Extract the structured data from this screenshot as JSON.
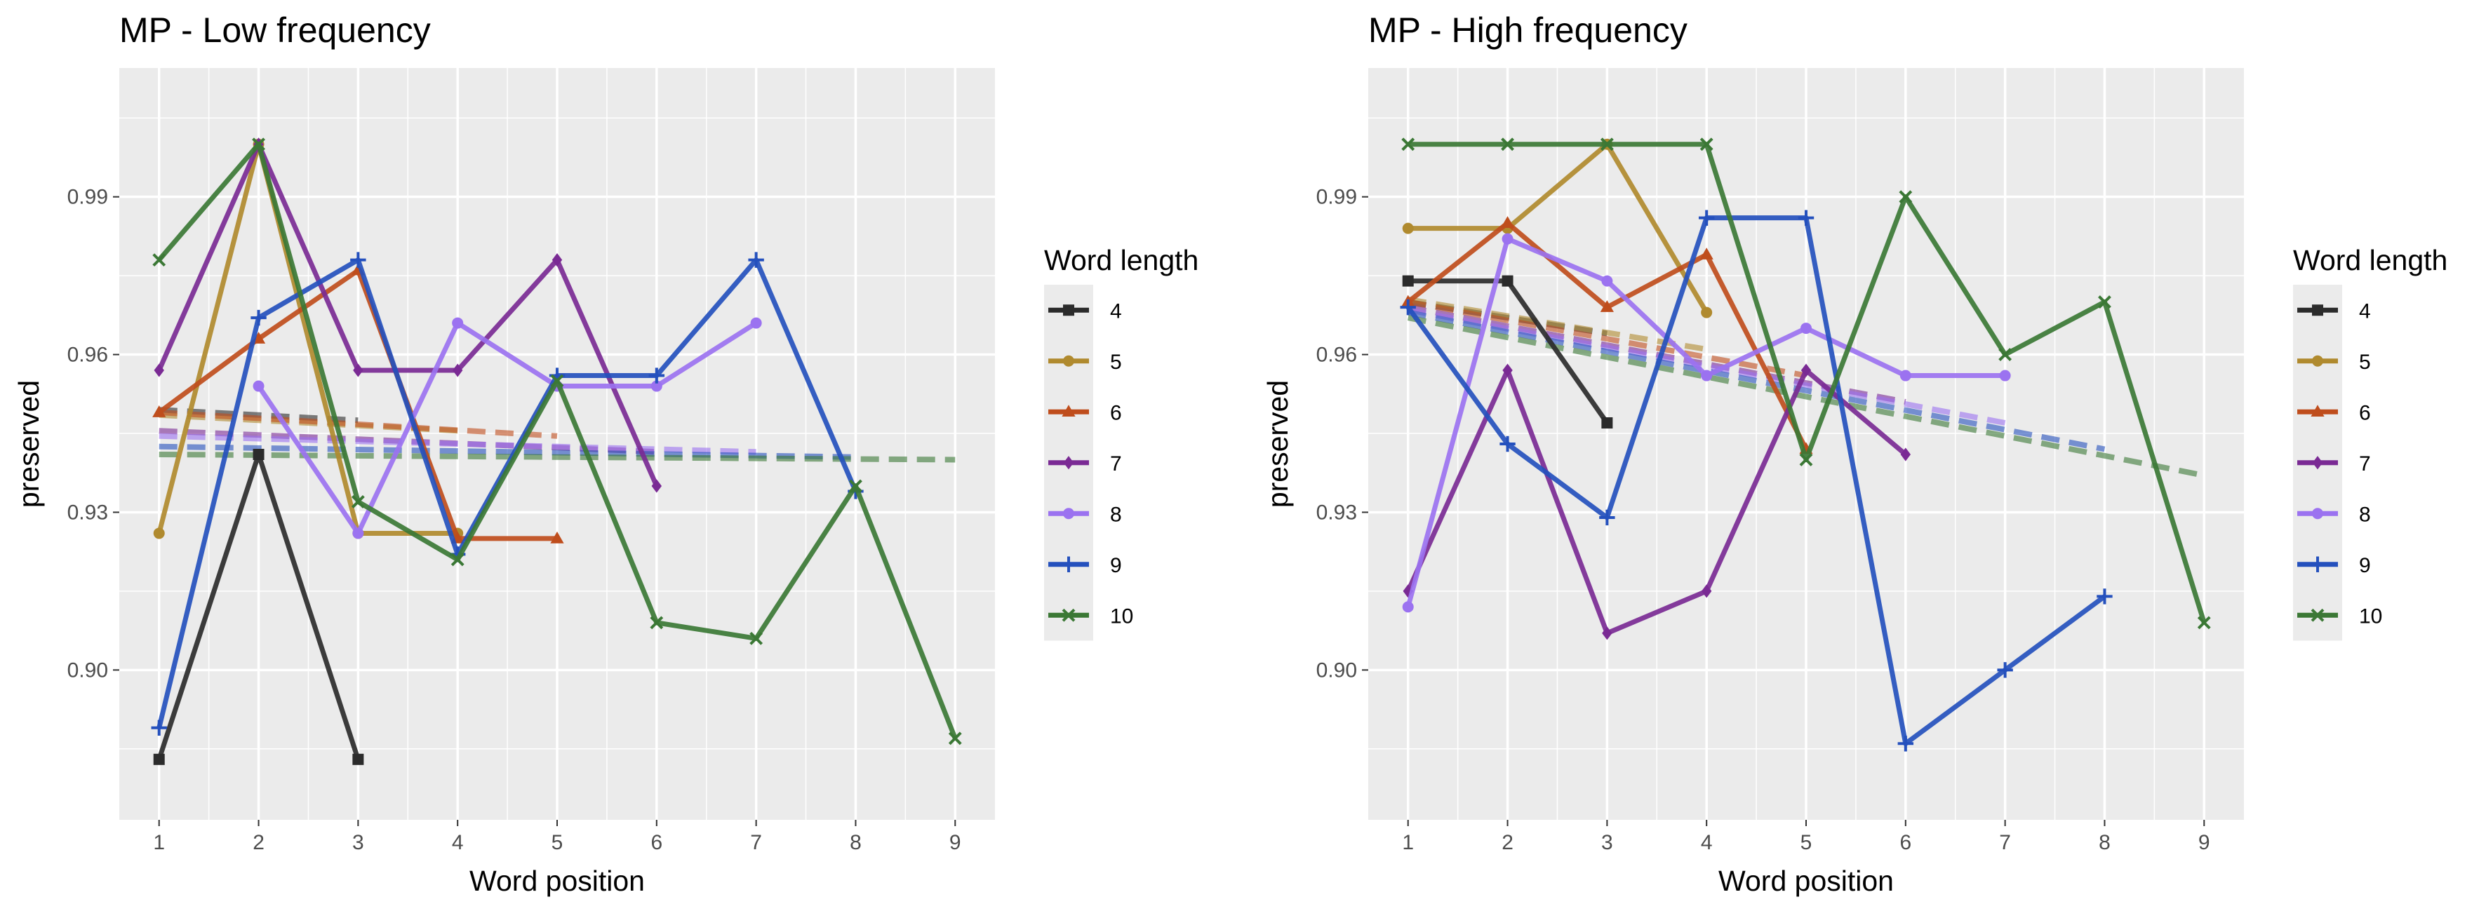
{
  "colors": {
    "4": "#2b2b2b",
    "5": "#b08a2e",
    "6": "#bf4d1c",
    "7": "#7a2a94",
    "8": "#9b72f0",
    "9": "#2450bd",
    "10": "#3b7835"
  },
  "chart_data": [
    {
      "type": "line",
      "title": "MP - Low frequency",
      "xlabel": "Word position",
      "ylabel": "preserved",
      "legend_title": "Word length",
      "legend_position": "right",
      "x_ticks": [
        "1",
        "2",
        "3",
        "4",
        "5",
        "6",
        "7",
        "8",
        "9"
      ],
      "y_ticks": [
        "0.90",
        "0.93",
        "0.96",
        "0.99"
      ],
      "xlim": [
        0.6,
        9.4
      ],
      "ylim": [
        0.8715,
        1.0145
      ],
      "series": [
        {
          "name": "4",
          "marker": "square",
          "x": [
            1,
            2,
            3
          ],
          "y": [
            0.883,
            0.941,
            0.883
          ],
          "trend": [
            [
              1,
              0.9495
            ],
            [
              3,
              0.9475
            ]
          ]
        },
        {
          "name": "5",
          "marker": "circle",
          "x": [
            1,
            2,
            3,
            4
          ],
          "y": [
            0.926,
            1.0,
            0.926,
            0.926
          ],
          "trend": [
            [
              1,
              0.9485
            ],
            [
              4,
              0.9455
            ]
          ]
        },
        {
          "name": "6",
          "marker": "triangle",
          "x": [
            1,
            2,
            3,
            4,
            5
          ],
          "y": [
            0.949,
            0.963,
            0.976,
            0.925,
            0.925
          ],
          "trend": [
            [
              1,
              0.949
            ],
            [
              5,
              0.9445
            ]
          ]
        },
        {
          "name": "7",
          "marker": "diamond",
          "x": [
            1,
            2,
            3,
            4,
            5,
            6
          ],
          "y": [
            0.957,
            1.0,
            0.957,
            0.957,
            0.978,
            0.935
          ],
          "trend": [
            [
              1,
              0.9455
            ],
            [
              6,
              0.9415
            ]
          ]
        },
        {
          "name": "8",
          "marker": "circle",
          "x": [
            2,
            3,
            4,
            5,
            6,
            7
          ],
          "y": [
            0.954,
            0.926,
            0.966,
            0.954,
            0.954,
            0.966
          ],
          "trend": [
            [
              1,
              0.9445
            ],
            [
              7,
              0.9415
            ]
          ]
        },
        {
          "name": "9",
          "marker": "plus",
          "x": [
            1,
            2,
            3,
            4,
            5,
            6,
            7,
            8
          ],
          "y": [
            0.889,
            0.967,
            0.978,
            0.922,
            0.956,
            0.956,
            0.978,
            0.934
          ],
          "trend": [
            [
              1,
              0.9425
            ],
            [
              8,
              0.9405
            ]
          ]
        },
        {
          "name": "10",
          "marker": "cross",
          "x": [
            1,
            2,
            3,
            4,
            5,
            6,
            7,
            8,
            9
          ],
          "y": [
            0.978,
            1.0,
            0.932,
            0.921,
            0.955,
            0.909,
            0.906,
            0.935,
            0.887
          ],
          "trend": [
            [
              1,
              0.941
            ],
            [
              9,
              0.94
            ]
          ]
        }
      ]
    },
    {
      "type": "line",
      "title": "MP - High frequency",
      "xlabel": "Word position",
      "ylabel": "preserved",
      "legend_title": "Word length",
      "legend_position": "right",
      "x_ticks": [
        "1",
        "2",
        "3",
        "4",
        "5",
        "6",
        "7",
        "8",
        "9"
      ],
      "y_ticks": [
        "0.90",
        "0.93",
        "0.96",
        "0.99"
      ],
      "xlim": [
        0.6,
        9.4
      ],
      "ylim": [
        0.8715,
        1.0145
      ],
      "series": [
        {
          "name": "4",
          "marker": "square",
          "x": [
            1,
            2,
            3
          ],
          "y": [
            0.974,
            0.974,
            0.947
          ],
          "trend": [
            [
              1,
              0.97
            ],
            [
              3,
              0.964
            ]
          ]
        },
        {
          "name": "5",
          "marker": "circle",
          "x": [
            1,
            2,
            3,
            4
          ],
          "y": [
            0.984,
            0.984,
            1.0,
            0.968
          ],
          "trend": [
            [
              1,
              0.9705
            ],
            [
              4,
              0.961
            ]
          ]
        },
        {
          "name": "6",
          "marker": "triangle",
          "x": [
            1,
            2,
            3,
            4,
            5
          ],
          "y": [
            0.97,
            0.985,
            0.969,
            0.979,
            0.942
          ],
          "trend": [
            [
              1,
              0.97
            ],
            [
              5,
              0.956
            ]
          ]
        },
        {
          "name": "7",
          "marker": "diamond",
          "x": [
            1,
            2,
            3,
            4,
            5,
            6
          ],
          "y": [
            0.915,
            0.957,
            0.907,
            0.915,
            0.957,
            0.941
          ],
          "trend": [
            [
              1,
              0.969
            ],
            [
              6,
              0.951
            ]
          ]
        },
        {
          "name": "8",
          "marker": "circle",
          "x": [
            1,
            2,
            3,
            4,
            5,
            6,
            7
          ],
          "y": [
            0.912,
            0.982,
            0.974,
            0.956,
            0.965,
            0.956,
            0.956
          ],
          "trend": [
            [
              1,
              0.9685
            ],
            [
              7,
              0.947
            ]
          ]
        },
        {
          "name": "9",
          "marker": "plus",
          "x": [
            1,
            2,
            3,
            4,
            5,
            6,
            7,
            8
          ],
          "y": [
            0.969,
            0.943,
            0.929,
            0.986,
            0.986,
            0.886,
            0.9,
            0.914
          ],
          "trend": [
            [
              1,
              0.968
            ],
            [
              8,
              0.942
            ]
          ]
        },
        {
          "name": "10",
          "marker": "cross",
          "x": [
            1,
            2,
            3,
            4,
            5,
            6,
            7,
            8,
            9
          ],
          "y": [
            1.0,
            1.0,
            1.0,
            1.0,
            0.94,
            0.99,
            0.96,
            0.97,
            0.909
          ],
          "trend": [
            [
              1,
              0.967
            ],
            [
              9,
              0.937
            ]
          ]
        }
      ]
    }
  ]
}
